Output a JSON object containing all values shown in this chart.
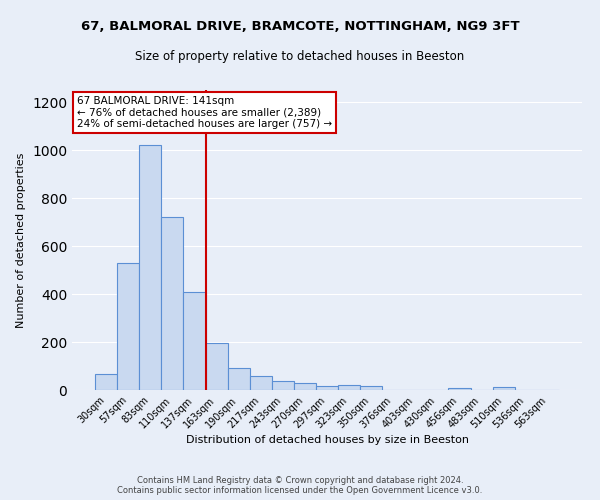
{
  "title1": "67, BALMORAL DRIVE, BRAMCOTE, NOTTINGHAM, NG9 3FT",
  "title2": "Size of property relative to detached houses in Beeston",
  "xlabel": "Distribution of detached houses by size in Beeston",
  "ylabel": "Number of detached properties",
  "categories": [
    "30sqm",
    "57sqm",
    "83sqm",
    "110sqm",
    "137sqm",
    "163sqm",
    "190sqm",
    "217sqm",
    "243sqm",
    "270sqm",
    "297sqm",
    "323sqm",
    "350sqm",
    "376sqm",
    "403sqm",
    "430sqm",
    "456sqm",
    "483sqm",
    "510sqm",
    "536sqm",
    "563sqm"
  ],
  "values": [
    65,
    530,
    1020,
    720,
    410,
    195,
    90,
    58,
    38,
    30,
    15,
    22,
    15,
    0,
    0,
    0,
    10,
    0,
    12,
    0,
    0
  ],
  "bar_color": "#c9d9f0",
  "bar_edge_color": "#5b8fd4",
  "red_line_index": 5,
  "property_label": "67 BALMORAL DRIVE: 141sqm",
  "annotation_line1": "← 76% of detached houses are smaller (2,389)",
  "annotation_line2": "24% of semi-detached houses are larger (757) →",
  "annotation_box_color": "#ffffff",
  "annotation_box_edge": "#cc0000",
  "red_line_color": "#cc0000",
  "ylim": [
    0,
    1250
  ],
  "yticks": [
    0,
    200,
    400,
    600,
    800,
    1000,
    1200
  ],
  "footer1": "Contains HM Land Registry data © Crown copyright and database right 2024.",
  "footer2": "Contains public sector information licensed under the Open Government Licence v3.0.",
  "bg_color": "#e8eef8",
  "plot_bg_color": "#e8eef8",
  "title1_fontsize": 9.5,
  "title2_fontsize": 8.5,
  "ylabel_fontsize": 8,
  "xlabel_fontsize": 8,
  "tick_fontsize": 7,
  "annotation_fontsize": 7.5,
  "footer_fontsize": 6
}
